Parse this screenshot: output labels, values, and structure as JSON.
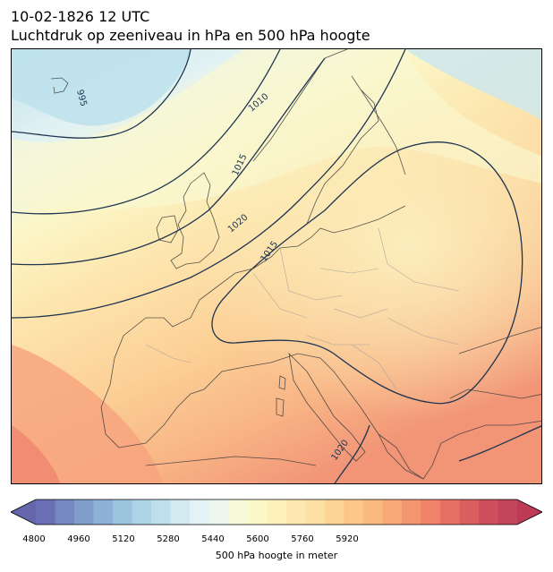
{
  "header": {
    "datetime": "10-02-1826 12 UTC",
    "title": "Luchtdruk op zeeniveau in hPa en 500 hPa hoogte"
  },
  "map": {
    "isobar_labels": [
      "995",
      "1010",
      "1015",
      "1020",
      "1015",
      "1020"
    ],
    "colors": {
      "isobar": "#1f3550",
      "coastline": "#3a3a3a",
      "border": "#9a9a9a"
    },
    "shading_palette": [
      "#6b75b8",
      "#8fb0d4",
      "#b9dcea",
      "#e4f3f3",
      "#fbf8cc",
      "#fde3a6",
      "#fbc38a",
      "#f49a76",
      "#d25a63"
    ]
  },
  "colorbar": {
    "label": "500 hPa hoogte in meter",
    "ticks": [
      "4800",
      "4960",
      "5120",
      "5280",
      "5440",
      "5600",
      "5760",
      "5920"
    ],
    "colors": [
      "#6b6fb5",
      "#7588c0",
      "#7f9ecb",
      "#8db2d5",
      "#9cc4de",
      "#acd3e6",
      "#bfdfec",
      "#d3eaf1",
      "#e3f2f5",
      "#eef7ee",
      "#f6fadb",
      "#fcf9c8",
      "#fdf1bc",
      "#fee8b0",
      "#fde0a3",
      "#fdd595",
      "#fcc889",
      "#f9b97f",
      "#f7a977",
      "#f39670",
      "#ee8369",
      "#e67063",
      "#dc5f5f",
      "#cf505c",
      "#c4445a"
    ],
    "extend_low_color": "#6666ad",
    "extend_high_color": "#bd3b57"
  }
}
